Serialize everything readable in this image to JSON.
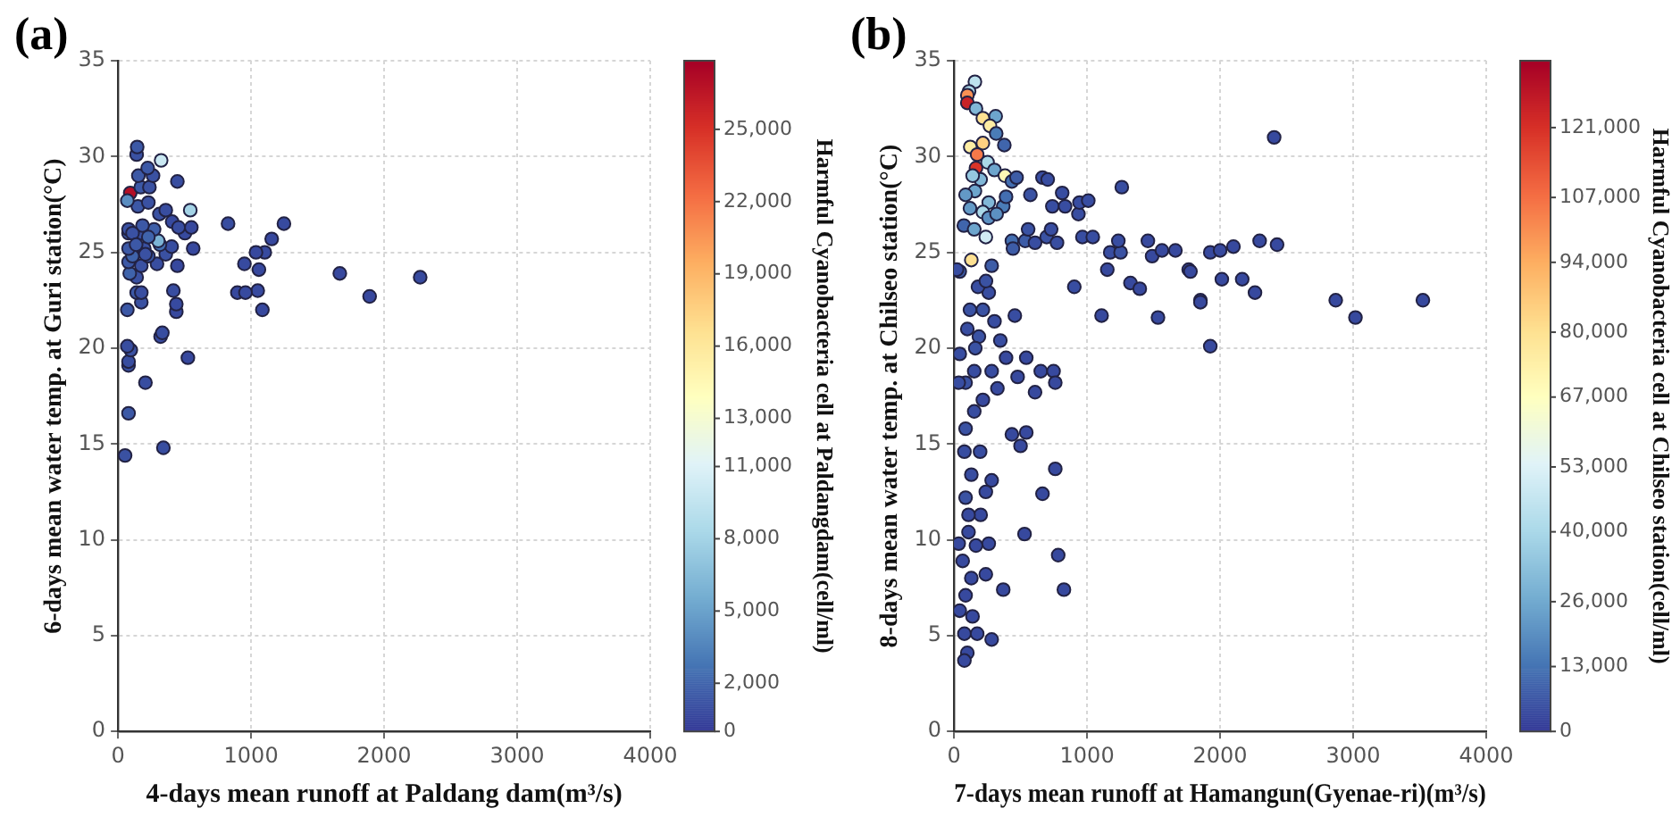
{
  "chart_data": [
    {
      "type": "scatter",
      "annotations": [
        "(a)"
      ],
      "xlabel": "4-days mean runoff at Paldang dam(m³/s)",
      "ylabel": "6-days mean water temp. at Guri station(°C)",
      "clabel": "Harmful Cyanobacteria cell at Paldangdam(cell/ml)",
      "xlim": [
        0,
        4000
      ],
      "xticks": [
        0,
        1000,
        2000,
        3000,
        4000
      ],
      "ylim": [
        0,
        35
      ],
      "yticks": [
        0,
        5,
        10,
        15,
        20,
        25,
        30,
        35
      ],
      "clim": [
        0,
        27850
      ],
      "cticks": [
        0,
        {
          "value": 2000,
          "label": "2,000"
        },
        {
          "value": 5000,
          "label": "5,000"
        },
        {
          "value": 8000,
          "label": "8,000"
        },
        {
          "value": 11000,
          "label": "11,000"
        },
        {
          "value": 13000,
          "label": "13,000"
        },
        {
          "value": 16000,
          "label": "16,000"
        },
        {
          "value": 19000,
          "label": "19,000"
        },
        {
          "value": 22000,
          "label": "22,000"
        },
        {
          "value": 25000,
          "label": "25,000"
        }
      ],
      "grid": true,
      "marker": "circle",
      "x": [
        53,
        341,
        79,
        206,
        525,
        79,
        79,
        96,
        70,
        320,
        333,
        70,
        438,
        438,
        416,
        175,
        140,
        175,
        140,
        88,
        446,
        79,
        175,
        293,
        109,
        228,
        359,
        403,
        565,
        79,
        197,
        315,
        302,
        79,
        175,
        271,
        503,
        551,
        407,
        455,
        79,
        184,
        827,
        1247,
        1155,
        1103,
        1037,
        950,
        1059,
        1050,
        897,
        958,
        1085,
        1667,
        1891,
        2271,
        543,
        311,
        149,
        228,
        92,
        70,
        446,
        171,
        236,
        153,
        263,
        223,
        140,
        144,
        324,
        359,
        109,
        228,
        136,
        206
      ],
      "values": [
        14.4,
        14.8,
        16.6,
        18.2,
        19.5,
        19.1,
        19.3,
        19.9,
        20.1,
        20.6,
        20.8,
        22.0,
        21.9,
        22.3,
        23.0,
        22.4,
        22.9,
        22.9,
        23.7,
        23.9,
        24.3,
        24.5,
        24.3,
        24.4,
        24.8,
        24.8,
        24.9,
        25.3,
        25.2,
        25.2,
        25.2,
        25.4,
        25.6,
        26.0,
        26.0,
        26.2,
        26.0,
        26.3,
        26.6,
        26.3,
        26.2,
        26.4,
        26.5,
        26.5,
        25.7,
        25.0,
        25.0,
        24.4,
        24.1,
        23.0,
        22.9,
        22.9,
        22.0,
        23.9,
        22.7,
        23.7,
        27.2,
        27.0,
        27.4,
        27.6,
        28.1,
        27.7,
        28.7,
        28.4,
        28.4,
        29.0,
        29.0,
        29.4,
        30.1,
        30.5,
        29.8,
        27.2,
        26.0,
        25.8,
        25.4,
        24.9
      ],
      "cvalues": [
        1200,
        1000,
        1500,
        1000,
        800,
        1200,
        1000,
        1200,
        1000,
        900,
        1000,
        1500,
        800,
        900,
        1000,
        1200,
        1500,
        1000,
        1200,
        2000,
        800,
        1500,
        1200,
        1000,
        2000,
        1500,
        1200,
        1000,
        800,
        1500,
        1200,
        2500,
        6000,
        1500,
        1200,
        1800,
        900,
        800,
        900,
        1000,
        1200,
        1500,
        1000,
        900,
        800,
        900,
        800,
        900,
        800,
        900,
        800,
        900,
        800,
        800,
        800,
        900,
        8000,
        1200,
        1500,
        1200,
        27000,
        4000,
        1000,
        1500,
        1200,
        1500,
        1200,
        1500,
        1200,
        1500,
        10000,
        1000,
        1200,
        2000,
        1500,
        1200
      ]
    },
    {
      "type": "scatter",
      "annotations": [
        "(b)"
      ],
      "xlabel": "7-days mean runoff at Hamangun(Gyenae-ri)(m³/s)",
      "ylabel": "8-days mean water temp. at Chilseo station(°C)",
      "clabel": "Harmful Cyanobacteria cell at Chilseo station(cell/ml)",
      "xlim": [
        0,
        4000
      ],
      "xticks": [
        0,
        1000,
        2000,
        3000,
        4000
      ],
      "ylim": [
        0,
        35
      ],
      "yticks": [
        0,
        5,
        10,
        15,
        20,
        25,
        30,
        35
      ],
      "clim": [
        0,
        134400
      ],
      "cticks": [
        0,
        {
          "value": 13000,
          "label": "13,000"
        },
        {
          "value": 26000,
          "label": "26,000"
        },
        {
          "value": 40000,
          "label": "40,000"
        },
        {
          "value": 53000,
          "label": "53,000"
        },
        {
          "value": 67000,
          "label": "67,000"
        },
        {
          "value": 80000,
          "label": "80,000"
        },
        {
          "value": 94000,
          "label": "94,000"
        },
        {
          "value": 107000,
          "label": "107,000"
        },
        {
          "value": 121000,
          "label": "121,000"
        }
      ],
      "grid": true,
      "marker": "circle",
      "x": [
        157,
        113,
        100,
        100,
        165,
        217,
        313,
        270,
        317,
        378,
        122,
        217,
        174,
        165,
        252,
        304,
        383,
        435,
        157,
        87,
        261,
        370,
        217,
        74,
        152,
        239,
        435,
        130,
        43,
        283,
        443,
        535,
        557,
        391,
        470,
        574,
        665,
        704,
        739,
        696,
        730,
        609,
        774,
        813,
        835,
        935,
        943,
        1009,
        965,
        904,
        1109,
        1043,
        1152,
        1174,
        1252,
        1235,
        1326,
        1396,
        1457,
        1261,
        1489,
        1533,
        1563,
        1664,
        1764,
        1777,
        1852,
        1852,
        1926,
        1926,
        2000,
        2013,
        2100,
        2166,
        2262,
        2297,
        2406,
        2428,
        2869,
        3017,
        3524,
        261,
        217,
        304,
        348,
        457,
        187,
        391,
        543,
        283,
        87,
        35,
        326,
        478,
        609,
        652,
        748,
        761,
        152,
        87,
        435,
        543,
        500,
        196,
        130,
        87,
        283,
        200,
        109,
        165,
        261,
        65,
        130,
        239,
        87,
        43,
        139,
        78,
        174,
        100,
        78,
        370,
        283,
        761,
        665,
        530,
        783,
        826,
        43,
        152,
        217,
        78,
        239,
        109,
        35,
        22,
        180,
        120,
        240,
        100,
        160,
        260,
        320,
        120,
        200,
        140
      ],
      "values": [
        33.9,
        33.4,
        33.2,
        32.8,
        32.5,
        32.0,
        32.1,
        31.6,
        31.2,
        30.6,
        30.5,
        30.7,
        30.1,
        29.4,
        29.7,
        29.3,
        29.0,
        28.7,
        28.2,
        28.0,
        27.6,
        27.4,
        27.1,
        26.4,
        26.2,
        25.8,
        25.6,
        24.6,
        24.0,
        24.3,
        25.2,
        25.6,
        26.2,
        27.9,
        28.9,
        28.0,
        28.9,
        28.8,
        27.4,
        25.8,
        26.2,
        25.5,
        25.5,
        28.1,
        27.4,
        27.0,
        27.6,
        27.7,
        25.8,
        23.2,
        21.7,
        25.8,
        24.1,
        25.0,
        25.0,
        25.6,
        23.4,
        23.1,
        25.6,
        28.4,
        24.8,
        21.6,
        25.1,
        25.1,
        24.1,
        24.0,
        22.5,
        22.4,
        25.0,
        20.1,
        25.1,
        23.6,
        25.3,
        23.6,
        22.9,
        25.6,
        31.0,
        25.4,
        22.5,
        21.6,
        22.5,
        22.9,
        22.0,
        21.4,
        20.4,
        21.7,
        20.6,
        19.5,
        19.5,
        18.8,
        18.2,
        18.2,
        17.9,
        18.5,
        17.7,
        18.8,
        18.8,
        18.2,
        16.7,
        15.8,
        15.5,
        15.6,
        14.9,
        14.6,
        13.4,
        12.2,
        13.1,
        11.3,
        10.4,
        9.7,
        9.8,
        8.9,
        8.0,
        8.2,
        7.1,
        6.3,
        6.0,
        5.1,
        5.1,
        4.1,
        3.7,
        7.4,
        4.8,
        13.7,
        12.4,
        10.3,
        9.2,
        7.4,
        19.7,
        18.8,
        17.3,
        14.6,
        12.5,
        11.3,
        9.8,
        24.1,
        23.2,
        22.0,
        23.5,
        21.0,
        20.0,
        26.8,
        27.0,
        27.3,
        28.8,
        29.0
      ],
      "cvalues": [
        45000,
        40000,
        100000,
        125000,
        30000,
        80000,
        25000,
        75000,
        15000,
        10000,
        75000,
        85000,
        105000,
        120000,
        40000,
        25000,
        70000,
        12000,
        25000,
        22000,
        30000,
        15000,
        40000,
        10000,
        25000,
        50000,
        12000,
        80000,
        8000,
        8000,
        8000,
        8000,
        6000,
        12000,
        8000,
        6000,
        5000,
        5000,
        5000,
        6000,
        5000,
        5000,
        5000,
        5000,
        5000,
        5000,
        5000,
        5000,
        5000,
        5000,
        4000,
        5000,
        4000,
        5000,
        6000,
        5000,
        4000,
        4000,
        4000,
        5000,
        4000,
        4000,
        4000,
        4000,
        4000,
        4000,
        4000,
        4000,
        4000,
        4000,
        4000,
        4000,
        4000,
        4000,
        4000,
        4000,
        4000,
        4000,
        4000,
        4000,
        4000,
        5000,
        6000,
        5000,
        5000,
        5000,
        6000,
        4000,
        4000,
        5000,
        6000,
        5000,
        4000,
        4000,
        4000,
        4000,
        4000,
        4000,
        5000,
        6000,
        4000,
        4000,
        4000,
        5000,
        5000,
        6000,
        4000,
        4000,
        4000,
        4000,
        4000,
        4000,
        4000,
        4000,
        4000,
        4000,
        4000,
        4000,
        4000,
        4000,
        4000,
        4000,
        4000,
        4000,
        4000,
        4000,
        4000,
        4000,
        5000,
        5000,
        4000,
        5000,
        4000,
        4000,
        4000,
        5000,
        5000,
        6000,
        6000,
        5000,
        6000,
        20000,
        20000,
        22000,
        30000,
        35000
      ]
    }
  ]
}
